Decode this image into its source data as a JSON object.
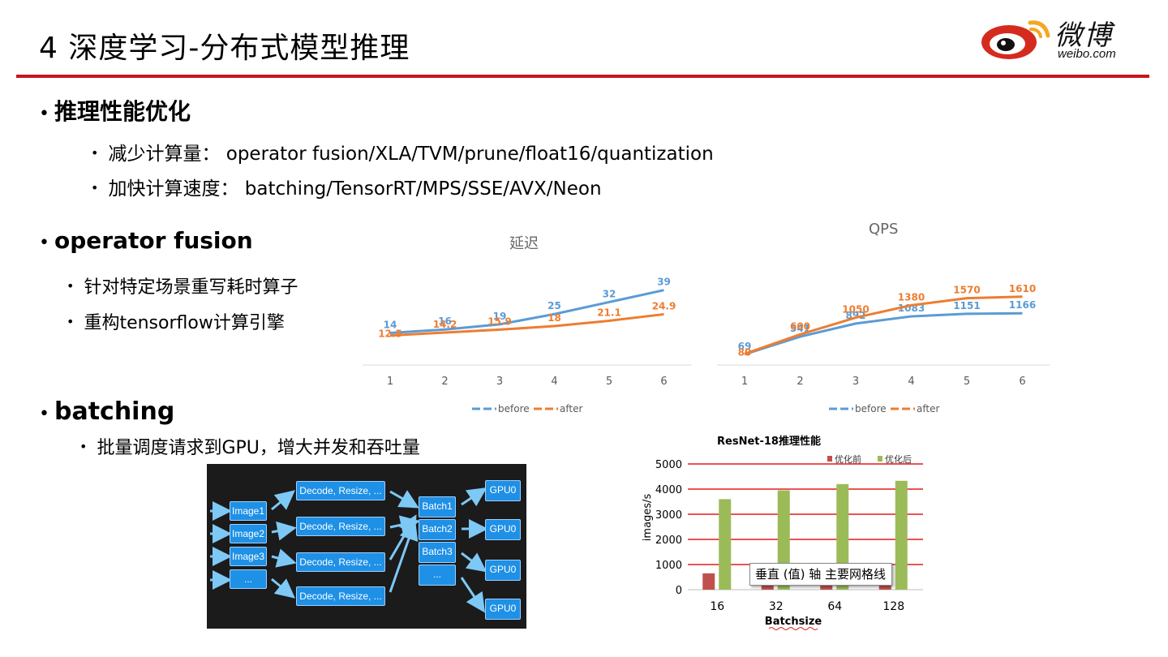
{
  "slide": {
    "title": "4 深度学习-分布式模型推理",
    "logo_cn": "微博",
    "logo_en": "weibo.com",
    "colors": {
      "accent_red": "#c8161d",
      "before_blue": "#5b9bd5",
      "after_orange": "#ed7d31",
      "bar_red": "#c0504d",
      "bar_green": "#9bbb59",
      "node_blue": "#1e90e6"
    }
  },
  "sections": {
    "perf": {
      "heading": "推理性能优化",
      "items": [
        "减少计算量： operator fusion/XLA/TVM/prune/float16/quantization",
        "加快计算速度： batching/TensorRT/MPS/SSE/AVX/Neon"
      ]
    },
    "fusion": {
      "heading": "operator fusion",
      "items": [
        "针对特定场景重写耗时算子",
        "重构tensorflow计算引擎"
      ]
    },
    "batching": {
      "heading": "batching",
      "items": [
        "批量调度请求到GPU，增大并发和吞吐量"
      ]
    }
  },
  "bullet": "•",
  "diagram": {
    "images": [
      "Image1",
      "Image2",
      "Image3",
      "..."
    ],
    "decode": [
      "Decode, Resize, ...",
      "Decode, Resize, ...",
      "Decode, Resize, ...",
      "Decode, Resize, ..."
    ],
    "batches": [
      "Batch1",
      "Batch2",
      "Batch3",
      "..."
    ],
    "gpus": [
      "GPU0",
      "GPU0",
      "GPU0",
      "GPU0"
    ]
  },
  "tooltip": "垂直 (值) 轴 主要网格线",
  "chart_data": [
    {
      "type": "line",
      "title": "延迟",
      "x": [
        1,
        2,
        3,
        4,
        5,
        6
      ],
      "series": [
        {
          "name": "before",
          "values": [
            14,
            16,
            19,
            25,
            32,
            39
          ],
          "labels": [
            "14",
            "16",
            "19",
            "25",
            "32",
            "39"
          ],
          "color": "#5b9bd5"
        },
        {
          "name": "after",
          "values": [
            12.5,
            14.2,
            15.9,
            18,
            21.1,
            24.9
          ],
          "labels": [
            "12.5",
            "14.2",
            "15.9",
            "18",
            "21.1",
            "24.9"
          ],
          "color": "#ed7d31"
        }
      ],
      "ylim": [
        0,
        45
      ],
      "legend": "bottom",
      "grid": false
    },
    {
      "type": "line",
      "title": "QPS",
      "x": [
        1,
        2,
        3,
        4,
        5,
        6
      ],
      "series": [
        {
          "name": "before",
          "values": [
            69,
            541,
            892,
            1083,
            1151,
            1166
          ],
          "labels": [
            "69",
            "541",
            "892",
            "1083",
            "1151",
            "1166"
          ],
          "color": "#5b9bd5"
        },
        {
          "name": "after",
          "values": [
            80,
            600,
            1050,
            1380,
            1570,
            1610
          ],
          "labels": [
            "80",
            "600",
            "1050",
            "1380",
            "1570",
            "1610"
          ],
          "color": "#ed7d31"
        }
      ],
      "ylim": [
        0,
        1800
      ],
      "legend": "bottom",
      "grid": false
    },
    {
      "type": "bar",
      "title": "ResNet-18推理性能",
      "categories": [
        "16",
        "32",
        "64",
        "128"
      ],
      "series": [
        {
          "name": "优化前",
          "values": [
            650,
            550,
            450,
            400
          ],
          "color": "#c0504d"
        },
        {
          "name": "优化后",
          "values": [
            3600,
            3950,
            4200,
            4330
          ],
          "color": "#9bbb59"
        }
      ],
      "xlabel": "Batchsize",
      "ylabel": "images/s",
      "yticks": [
        "0",
        "1000",
        "2000",
        "3000",
        "4000",
        "5000"
      ],
      "ylim": [
        0,
        5000
      ],
      "legend": "top-right",
      "grid": true
    }
  ]
}
